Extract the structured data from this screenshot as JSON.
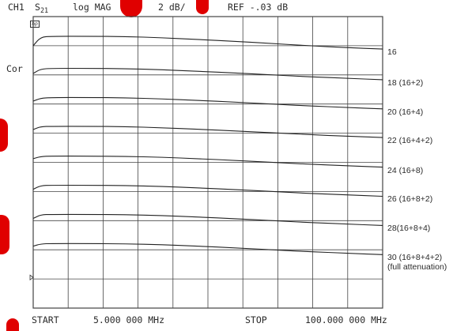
{
  "header": {
    "channel": "CH1",
    "param_main": "S",
    "param_sub": "21",
    "format": "log MAG",
    "scale": "2 dB/",
    "ref": "REF -.03 dB"
  },
  "side": {
    "correction": "Cor",
    "logo": "hp"
  },
  "footer": {
    "start_label": "START",
    "start_value": "5.000 000 MHz",
    "stop_label": "STOP",
    "stop_value": "100.000 000 MHz"
  },
  "colors": {
    "trace": "#222222",
    "grid": "#444444",
    "accent_marks": "#e00000"
  },
  "chart_data": {
    "type": "line",
    "x_unit": "MHz",
    "x_start": 5,
    "x_stop": 100,
    "x_divisions": 10,
    "y_divisions": 10,
    "grid": true,
    "series": [
      {
        "label": "16",
        "x": [
          5,
          7,
          10,
          20,
          30,
          40,
          50,
          60,
          70,
          80,
          90,
          100
        ],
        "y": [
          -15.85,
          -15.25,
          -15.2,
          -15.2,
          -15.22,
          -15.3,
          -15.42,
          -15.55,
          -15.7,
          -15.85,
          -15.98,
          -16.08
        ]
      },
      {
        "label": "18 (16+2)",
        "x": [
          5,
          7,
          10,
          20,
          30,
          40,
          50,
          60,
          70,
          80,
          90,
          100
        ],
        "y": [
          -17.75,
          -17.45,
          -17.4,
          -17.4,
          -17.42,
          -17.5,
          -17.6,
          -17.72,
          -17.85,
          -17.98,
          -18.08,
          -18.18
        ]
      },
      {
        "label": "20 (16+4)",
        "x": [
          5,
          7,
          10,
          20,
          30,
          40,
          50,
          60,
          70,
          80,
          90,
          100
        ],
        "y": [
          -19.65,
          -19.45,
          -19.4,
          -19.4,
          -19.42,
          -19.5,
          -19.6,
          -19.72,
          -19.85,
          -19.98,
          -20.08,
          -20.18
        ]
      },
      {
        "label": "22 (16+4+2)",
        "x": [
          5,
          7,
          10,
          20,
          30,
          40,
          50,
          60,
          70,
          80,
          90,
          100
        ],
        "y": [
          -21.6,
          -21.4,
          -21.38,
          -21.38,
          -21.4,
          -21.48,
          -21.58,
          -21.7,
          -21.82,
          -21.95,
          -22.05,
          -22.15
        ]
      },
      {
        "label": "24 (16+8)",
        "x": [
          5,
          7,
          10,
          20,
          30,
          40,
          50,
          60,
          70,
          80,
          90,
          100
        ],
        "y": [
          -23.6,
          -23.45,
          -23.42,
          -23.42,
          -23.44,
          -23.5,
          -23.6,
          -23.72,
          -23.85,
          -23.98,
          -24.08,
          -24.18
        ]
      },
      {
        "label": "26 (16+8+2)",
        "x": [
          5,
          7,
          10,
          20,
          30,
          40,
          50,
          60,
          70,
          80,
          90,
          100
        ],
        "y": [
          -25.7,
          -25.45,
          -25.42,
          -25.42,
          -25.44,
          -25.5,
          -25.6,
          -25.72,
          -25.85,
          -25.98,
          -26.08,
          -26.18
        ]
      },
      {
        "label": "28(16+8+4)",
        "x": [
          5,
          7,
          10,
          20,
          30,
          40,
          50,
          60,
          70,
          80,
          90,
          100
        ],
        "y": [
          -27.7,
          -27.45,
          -27.42,
          -27.42,
          -27.44,
          -27.5,
          -27.6,
          -27.72,
          -27.85,
          -27.98,
          -28.08,
          -28.18
        ]
      },
      {
        "label": "30 (16+8+4+2)",
        "label2": "(full attenuation)",
        "x": [
          5,
          7,
          10,
          20,
          30,
          40,
          50,
          60,
          70,
          80,
          90,
          100
        ],
        "y": [
          -29.6,
          -29.45,
          -29.42,
          -29.42,
          -29.44,
          -29.5,
          -29.6,
          -29.72,
          -29.85,
          -29.98,
          -30.08,
          -30.18
        ]
      }
    ]
  }
}
